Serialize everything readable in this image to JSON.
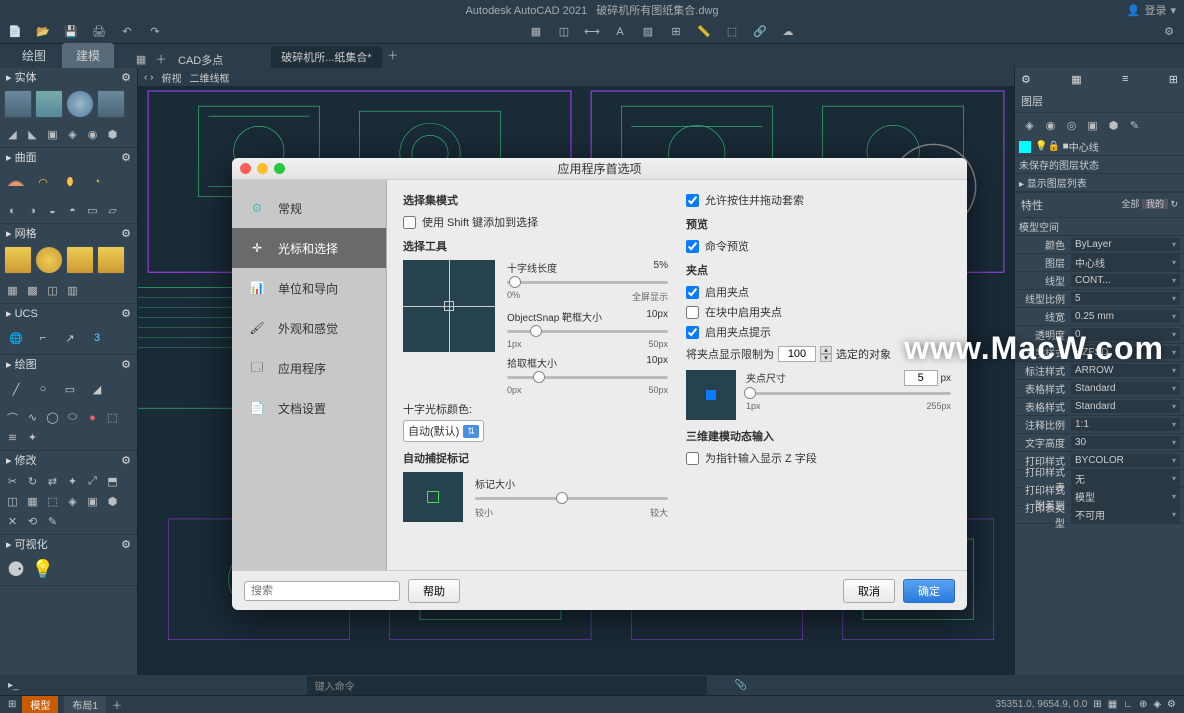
{
  "title_bar": {
    "app": "Autodesk AutoCAD 2021",
    "file": "破碎机所有图纸集合.dwg",
    "login": "登录"
  },
  "ribbon": {
    "tabs": [
      "绘图",
      "建模"
    ],
    "active": 1,
    "cad_multi": "CAD多点",
    "doc_tab": "破碎机所...纸集合*"
  },
  "left_panels": [
    {
      "title": "实体"
    },
    {
      "title": "曲面"
    },
    {
      "title": "网格"
    },
    {
      "title": "UCS"
    },
    {
      "title": "绘图"
    },
    {
      "title": "修改"
    },
    {
      "title": "可视化"
    }
  ],
  "canvas": {
    "view_tabs": [
      "俯视",
      "二维线框"
    ]
  },
  "right": {
    "layers_title": "图层",
    "layer_state": "未保存的图层状态",
    "layer_list": "显示图层列表",
    "props_title": "特性",
    "filter_all": "全部",
    "filter_my": "我的",
    "model_space": "模型空间",
    "rows": [
      {
        "l": "颜色",
        "v": "ByLayer"
      },
      {
        "l": "图层",
        "v": "中心线"
      },
      {
        "l": "线型",
        "v": "CONT..."
      },
      {
        "l": "线型比例",
        "v": "5"
      },
      {
        "l": "线宽",
        "v": "0.25 mm"
      },
      {
        "l": "透明度",
        "v": "0"
      },
      {
        "l": "文字样式",
        "v": "HZFSD"
      },
      {
        "l": "标注样式",
        "v": "ARROW"
      },
      {
        "l": "表格样式",
        "v": "Standard"
      },
      {
        "l": "表格样式",
        "v": "Standard"
      },
      {
        "l": "注释比例",
        "v": "1:1"
      },
      {
        "l": "文字高度",
        "v": "30"
      },
      {
        "l": "打印样式",
        "v": "BYCOLOR"
      },
      {
        "l": "打印样式表",
        "v": "无"
      },
      {
        "l": "打印样式附着到",
        "v": "模型"
      },
      {
        "l": "打印表类型",
        "v": "不可用"
      }
    ],
    "current_layer": "中心线"
  },
  "dialog": {
    "title": "应用程序首选项",
    "sidebar": [
      {
        "label": "常规",
        "icon": "gear"
      },
      {
        "label": "光标和选择",
        "icon": "cursor"
      },
      {
        "label": "单位和导向",
        "icon": "chart"
      },
      {
        "label": "外观和感觉",
        "icon": "brush"
      },
      {
        "label": "应用程序",
        "icon": "app"
      },
      {
        "label": "文档设置",
        "icon": "doc"
      }
    ],
    "active_side": 1,
    "sel_mode_title": "选择集模式",
    "shift_add": "使用 Shift 键添加到选择",
    "drag_lasso": "允许按住并拖动套索",
    "sel_tool_title": "选择工具",
    "crosshair_len": "十字线长度",
    "crosshair_pct": "5%",
    "range_0": "0%",
    "range_fs": "全屏显示",
    "objsnap": "ObjectSnap 靶框大小",
    "objsnap_val": "10px",
    "px1": "1px",
    "px50": "50px",
    "pickbox": "拾取框大小",
    "pickbox_val": "10px",
    "px0": "0px",
    "ch_color": "十字光标颜色:",
    "ch_color_val": "自动(默认)",
    "autosnap_title": "自动捕捉标记",
    "mark_size": "标记大小",
    "small": "较小",
    "large": "较大",
    "preview_title": "预览",
    "cmd_preview": "命令预览",
    "grip_title": "夹点",
    "grip_enable": "启用夹点",
    "grip_block": "在块中启用夹点",
    "grip_tip": "启用夹点提示",
    "grip_limit_pre": "将夹点显示限制为",
    "grip_limit_val": "100",
    "grip_limit_post": "选定的对象",
    "grip_size": "夹点尺寸",
    "grip_size_val": "5",
    "grip_size_unit": "px",
    "grip_1px": "1px",
    "grip_255px": "255px",
    "dyn3d_title": "三维建模动态输入",
    "dyn3d_z": "为指针输入显示 Z 字段",
    "search_ph": "搜索",
    "help": "帮助",
    "cancel": "取消",
    "ok": "确定"
  },
  "status": {
    "cmd_ph": "键入命令",
    "coords": "35351.0, 9654.9, 0.0"
  },
  "bottom": {
    "model": "模型",
    "layout": "布局1"
  },
  "watermark": "www.MacW.com",
  "colors": {
    "bg": "#1a2b38",
    "panel": "#334452",
    "dialog": "#ececec",
    "accent": "#0a7aff",
    "sidebar_active": "#6a6a6a"
  }
}
